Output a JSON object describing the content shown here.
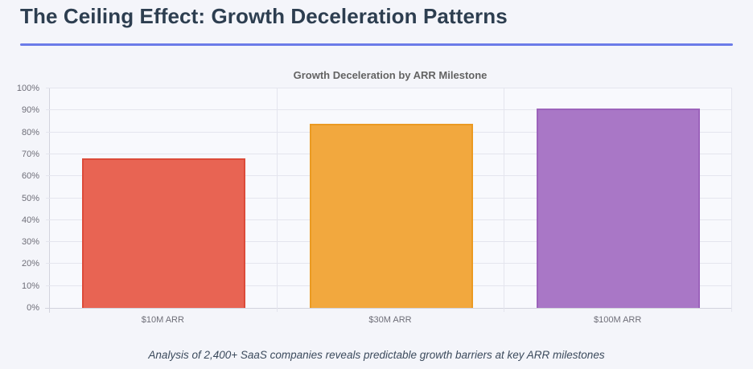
{
  "header": {
    "title": "The Ceiling Effect: Growth Deceleration Patterns",
    "underline_color": "#6b7be8"
  },
  "chart_data": {
    "type": "bar",
    "title": "Growth Deceleration by ARR Milestone",
    "categories": [
      "$10M ARR",
      "$30M ARR",
      "$100M ARR"
    ],
    "values": [
      68,
      84,
      91
    ],
    "unit": "%",
    "xlabel": "",
    "ylabel": "",
    "ylim": [
      0,
      100
    ],
    "ytick_step": 10,
    "ytick_labels": [
      "0%",
      "10%",
      "20%",
      "30%",
      "40%",
      "50%",
      "60%",
      "70%",
      "80%",
      "90%",
      "100%"
    ],
    "grid": true,
    "legend": "none",
    "bar_colors": [
      "#e86453",
      "#f2a83e",
      "#a977c6"
    ],
    "bar_border_colors": [
      "#dc4b39",
      "#eb9a22",
      "#9c63bb"
    ]
  },
  "caption": {
    "text": "Analysis of 2,400+ SaaS companies reveals predictable growth barriers at key ARR milestones"
  }
}
